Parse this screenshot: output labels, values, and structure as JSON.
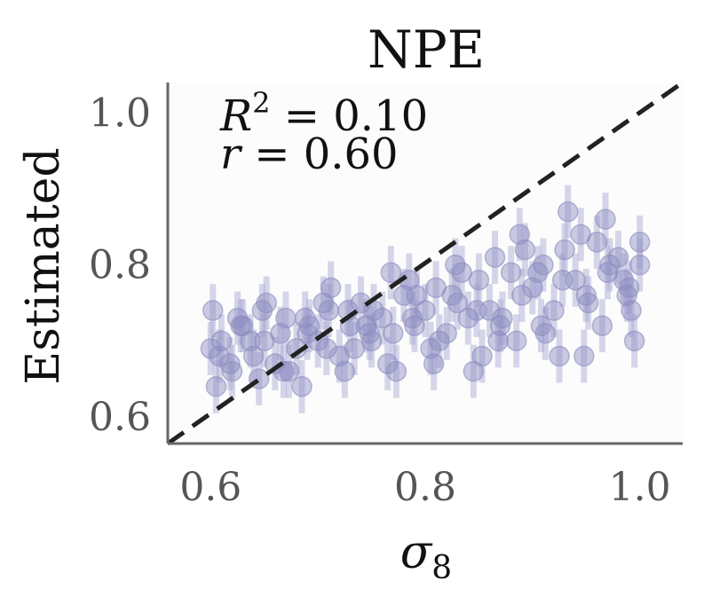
{
  "chart_data": {
    "type": "scatter",
    "title": "NPE",
    "xlabel": "σ8",
    "xlabel_main": "σ",
    "xlabel_sub": "8",
    "ylabel": "Estimated",
    "xlim": [
      0.56,
      1.04
    ],
    "ylim": [
      0.565,
      1.04
    ],
    "x_ticks": [
      0.6,
      0.8,
      1.0
    ],
    "y_ticks": [
      0.6,
      0.8,
      1.0
    ],
    "x_tick_labels": [
      "0.6",
      "0.8",
      "1.0"
    ],
    "y_tick_labels": [
      "0.6",
      "0.8",
      "1.0"
    ],
    "grid": false,
    "point_color": "#8c8cc0",
    "errorbar_color": "#a6a6d2",
    "reference_line": {
      "style": "dashed",
      "color": "#222222",
      "from": [
        0.56,
        0.56
      ],
      "to": [
        1.04,
        1.04
      ]
    },
    "annotations": {
      "r2_label": "R",
      "r2_sup": "2",
      "r2_value": " = 0.10",
      "r_label": "r",
      "r_value": " = 0.60"
    },
    "series": [
      {
        "x": [
          0.6,
          0.61,
          0.62,
          0.63,
          0.64,
          0.65,
          0.66,
          0.67,
          0.68,
          0.69,
          0.7,
          0.71,
          0.72,
          0.73,
          0.74,
          0.75,
          0.76,
          0.77,
          0.78,
          0.79,
          0.8,
          0.81,
          0.82,
          0.83,
          0.84,
          0.85,
          0.86,
          0.87,
          0.88,
          0.89,
          0.9,
          0.91,
          0.92,
          0.93,
          0.94,
          0.95,
          0.96,
          0.97,
          0.98,
          0.99,
          1.0,
          0.605,
          0.625,
          0.645,
          0.665,
          0.685,
          0.705,
          0.725,
          0.745,
          0.765,
          0.785,
          0.805,
          0.825,
          0.845,
          0.865,
          0.885,
          0.905,
          0.925,
          0.945,
          0.965,
          0.985,
          0.995,
          0.602,
          0.618,
          0.637,
          0.652,
          0.673,
          0.692,
          0.712,
          0.734,
          0.752,
          0.773,
          0.792,
          0.813,
          0.834,
          0.853,
          0.872,
          0.893,
          0.912,
          0.933,
          0.952,
          0.972,
          0.992,
          0.608,
          0.628,
          0.648,
          0.668,
          0.688,
          0.708,
          0.728,
          0.748,
          0.768,
          0.788,
          0.808,
          0.828,
          0.848,
          0.868,
          0.888,
          0.908,
          0.928,
          0.948,
          0.968,
          0.988,
          1.0
        ],
        "y": [
          0.69,
          0.7,
          0.66,
          0.72,
          0.68,
          0.7,
          0.67,
          0.73,
          0.69,
          0.71,
          0.7,
          0.74,
          0.68,
          0.72,
          0.75,
          0.7,
          0.73,
          0.71,
          0.76,
          0.72,
          0.74,
          0.77,
          0.71,
          0.75,
          0.73,
          0.78,
          0.74,
          0.72,
          0.79,
          0.76,
          0.77,
          0.8,
          0.74,
          0.82,
          0.78,
          0.76,
          0.83,
          0.79,
          0.81,
          0.77,
          0.8,
          0.64,
          0.73,
          0.65,
          0.71,
          0.64,
          0.75,
          0.66,
          0.72,
          0.67,
          0.78,
          0.69,
          0.76,
          0.66,
          0.81,
          0.7,
          0.79,
          0.68,
          0.84,
          0.72,
          0.78,
          0.7,
          0.74,
          0.67,
          0.7,
          0.75,
          0.66,
          0.72,
          0.77,
          0.69,
          0.74,
          0.66,
          0.76,
          0.7,
          0.79,
          0.68,
          0.73,
          0.82,
          0.71,
          0.87,
          0.75,
          0.8,
          0.74,
          0.68,
          0.72,
          0.74,
          0.66,
          0.73,
          0.69,
          0.74,
          0.71,
          0.79,
          0.73,
          0.67,
          0.8,
          0.74,
          0.7,
          0.84,
          0.72,
          0.78,
          0.68,
          0.86,
          0.76,
          0.83
        ],
        "yerr": 0.035
      }
    ]
  }
}
